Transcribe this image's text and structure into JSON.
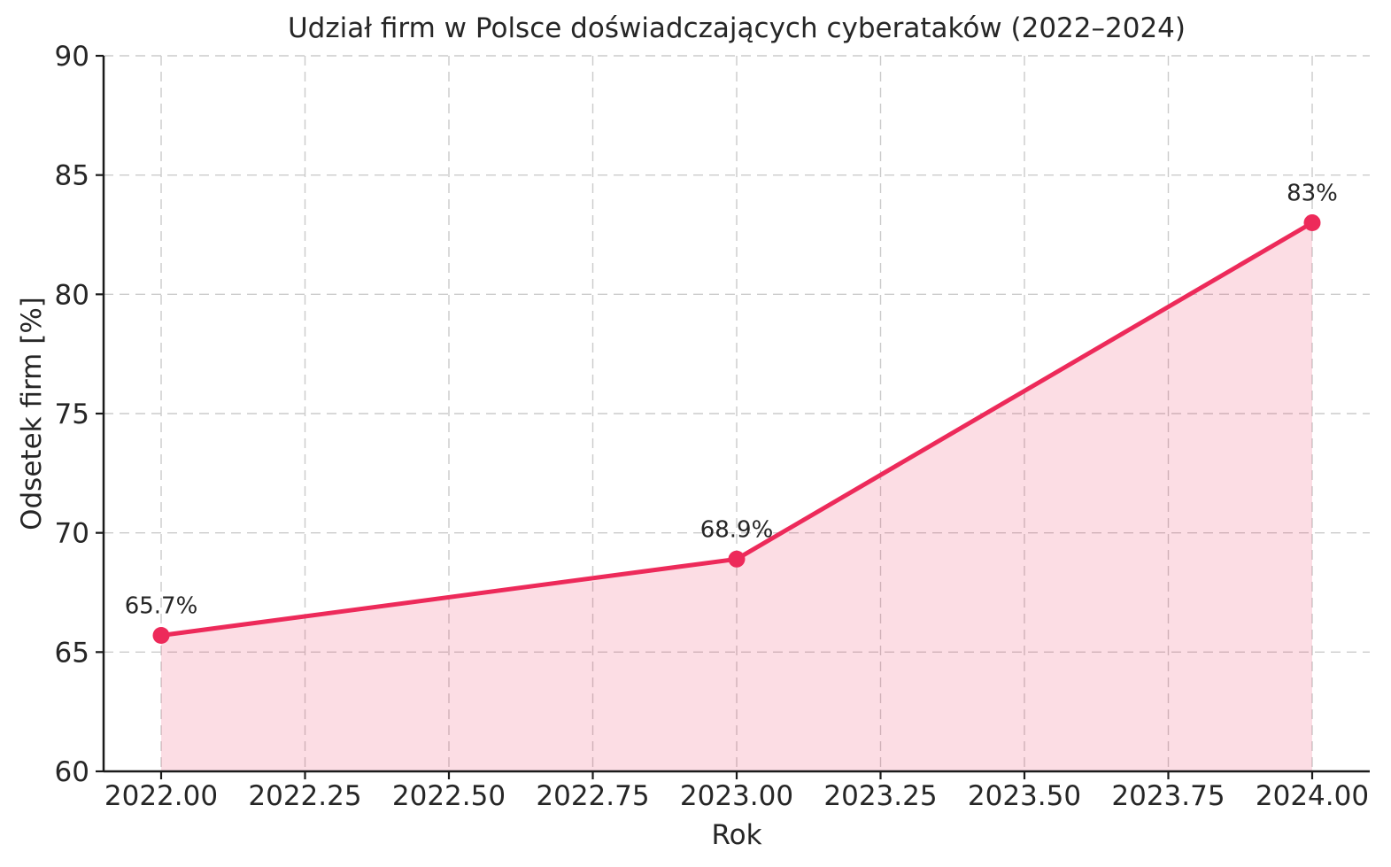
{
  "figure": {
    "title": "Udział firm w Polsce doświadczających cyberataków (2022–2024)",
    "xlabel": "Rok",
    "ylabel": "Odsetek firm [%]"
  },
  "chart_data": {
    "type": "area",
    "title": "Udział firm w Polsce doświadczających cyberataków (2022–2024)",
    "xlabel": "Rok",
    "ylabel": "Odsetek firm [%]",
    "x": [
      2022,
      2023,
      2024
    ],
    "y": [
      65.7,
      68.9,
      83
    ],
    "point_labels": [
      "65.7%",
      "68.9%",
      "83%"
    ],
    "xlim": [
      2021.9,
      2024.1
    ],
    "ylim": [
      60,
      90
    ],
    "xticks": [
      2022.0,
      2022.25,
      2022.5,
      2022.75,
      2023.0,
      2023.25,
      2023.5,
      2023.75,
      2024.0
    ],
    "xtick_labels": [
      "2022.00",
      "2022.25",
      "2022.50",
      "2022.75",
      "2023.00",
      "2023.25",
      "2023.50",
      "2023.75",
      "2024.00"
    ],
    "yticks": [
      60,
      65,
      70,
      75,
      80,
      85,
      90
    ],
    "ytick_labels": [
      "60",
      "65",
      "70",
      "75",
      "80",
      "85",
      "90"
    ],
    "grid": true,
    "legend": "none",
    "line_color": "#ED2A5A",
    "fill_color": "#ED2A5A",
    "fill_opacity": 0.16,
    "grid_color": "#cbcbcb",
    "spine_color": "#1a1a1a",
    "text_color": "#262626",
    "marker": "circle"
  }
}
